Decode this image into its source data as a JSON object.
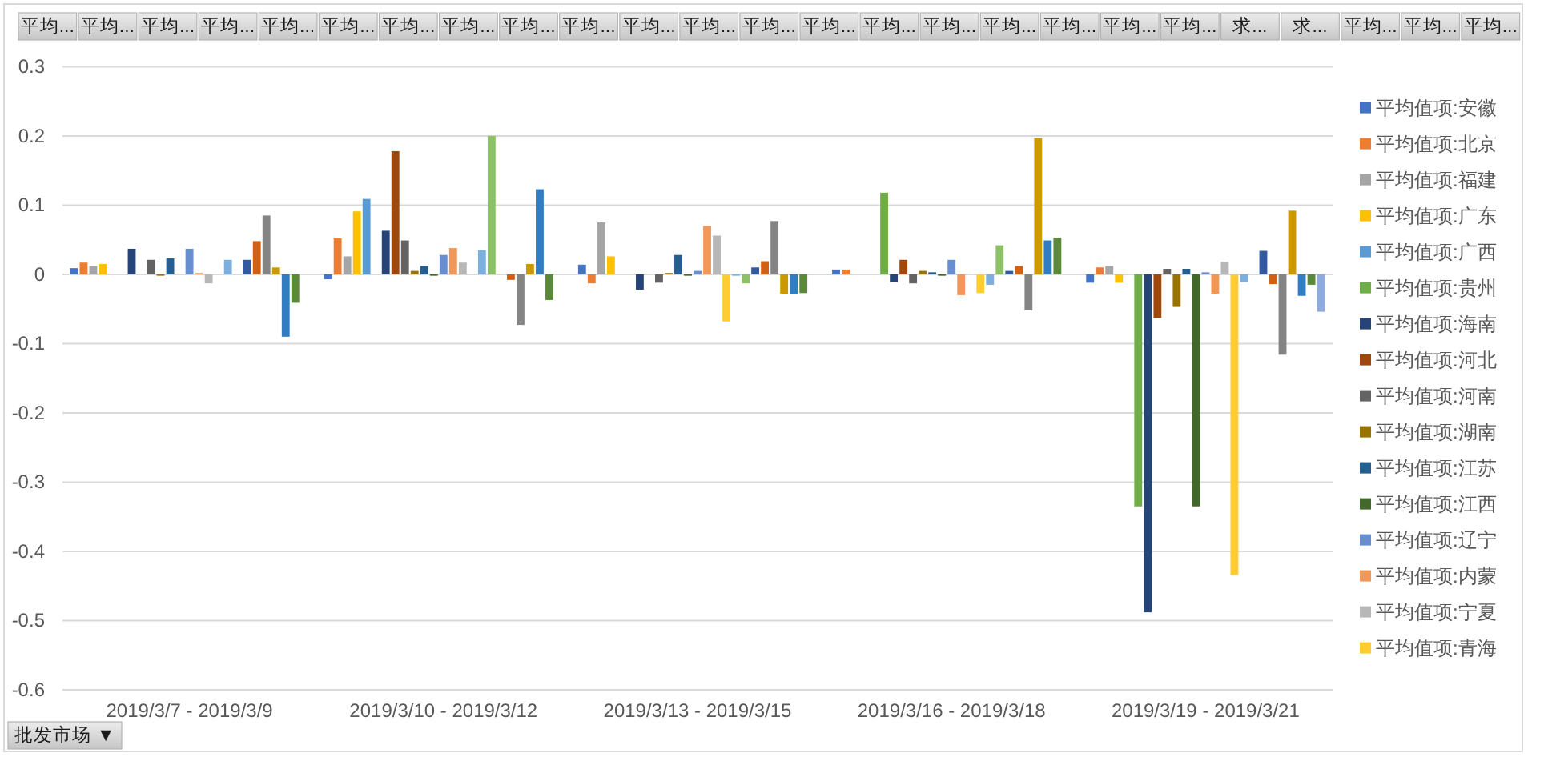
{
  "chart_data": {
    "type": "bar",
    "categories": [
      "2019/3/7 - 2019/3/9",
      "2019/3/10 - 2019/3/12",
      "2019/3/13 - 2019/3/15",
      "2019/3/16 - 2019/3/18",
      "2019/3/19 - 2019/3/21"
    ],
    "series": [
      {
        "name": "平均值项:安徽",
        "color": "#4472c4",
        "values": [
          0.009,
          -0.007,
          0.014,
          0.007,
          -0.012
        ]
      },
      {
        "name": "平均值项:北京",
        "color": "#ed7d31",
        "values": [
          0.017,
          0.052,
          -0.013,
          0.007,
          0.01
        ]
      },
      {
        "name": "平均值项:福建",
        "color": "#a5a5a5",
        "values": [
          0.012,
          0.026,
          0.075,
          null,
          0.012
        ]
      },
      {
        "name": "平均值项:广东",
        "color": "#ffc000",
        "values": [
          0.015,
          0.091,
          0.026,
          null,
          -0.012
        ]
      },
      {
        "name": "平均值项:广西",
        "color": "#5b9bd5",
        "values": [
          null,
          0.109,
          null,
          null,
          null
        ]
      },
      {
        "name": "平均值项:贵州",
        "color": "#70ad47",
        "values": [
          null,
          null,
          null,
          0.118,
          -0.335
        ]
      },
      {
        "name": "平均值项:海南",
        "color": "#264478",
        "values": [
          0.037,
          0.063,
          -0.022,
          -0.011,
          -0.488
        ]
      },
      {
        "name": "平均值项:河北",
        "color": "#9e480e",
        "values": [
          null,
          0.178,
          null,
          0.021,
          -0.063
        ]
      },
      {
        "name": "平均值项:河南",
        "color": "#636363",
        "values": [
          0.021,
          0.049,
          -0.012,
          -0.013,
          0.008
        ]
      },
      {
        "name": "平均值项:湖南",
        "color": "#997300",
        "values": [
          -0.002,
          0.005,
          0.002,
          0.005,
          -0.047
        ]
      },
      {
        "name": "平均值项:江苏",
        "color": "#255e91",
        "values": [
          0.023,
          0.012,
          0.028,
          0.003,
          0.008
        ]
      },
      {
        "name": "平均值项:江西",
        "color": "#43682b",
        "values": [
          null,
          -0.002,
          -0.002,
          -0.002,
          -0.335
        ]
      },
      {
        "name": "平均值项:辽宁",
        "color": "#698ed0",
        "values": [
          0.037,
          0.028,
          0.005,
          0.021,
          0.003
        ]
      },
      {
        "name": "平均值项:内蒙",
        "color": "#f1975a",
        "values": [
          0.002,
          0.038,
          0.07,
          -0.03,
          -0.028
        ]
      },
      {
        "name": "平均值项:宁夏",
        "color": "#b7b7b7",
        "values": [
          -0.013,
          0.017,
          0.056,
          null,
          0.018
        ]
      },
      {
        "name": "平均值项:青海",
        "color": "#ffcd33",
        "values": [
          null,
          null,
          -0.068,
          -0.027,
          -0.434
        ]
      },
      {
        "color": "#7cafdd",
        "values": [
          0.021,
          0.035,
          -0.002,
          -0.015,
          -0.011
        ]
      },
      {
        "color": "#8cc168",
        "values": [
          null,
          0.2,
          -0.013,
          0.042,
          null
        ]
      },
      {
        "color": "#335aa1",
        "values": [
          0.021,
          null,
          0.01,
          0.005,
          0.034
        ]
      },
      {
        "color": "#d26012",
        "values": [
          0.048,
          -0.008,
          0.019,
          0.012,
          -0.014
        ]
      },
      {
        "color": "#848484",
        "values": [
          0.085,
          -0.073,
          0.077,
          -0.052,
          -0.116
        ]
      },
      {
        "color": "#cc9a00",
        "values": [
          0.01,
          0.015,
          -0.028,
          0.197,
          0.092
        ]
      },
      {
        "color": "#327dc2",
        "values": [
          -0.09,
          0.123,
          -0.029,
          0.049,
          -0.031
        ]
      },
      {
        "color": "#5a8a39",
        "values": [
          -0.041,
          -0.037,
          -0.027,
          0.053,
          -0.015
        ]
      },
      {
        "color": "#8faadc",
        "values": [
          null,
          null,
          null,
          null,
          -0.054
        ]
      }
    ],
    "ylim": [
      -0.6,
      0.3
    ],
    "yticks": [
      -0.6,
      -0.5,
      -0.4,
      -0.3,
      -0.2,
      -0.1,
      0,
      0.1,
      0.2,
      0.3
    ],
    "grid": "y",
    "legend": "right",
    "annotations": [
      "平均...",
      "平均...",
      "平均...",
      "平均...",
      "平均...",
      "平均...",
      "平均...",
      "平均...",
      "平均...",
      "平均...",
      "平均...",
      "平均...",
      "平均...",
      "平均...",
      "平均...",
      "平均...",
      "平均...",
      "平均...",
      "平均...",
      "平均...",
      "求...",
      "求...",
      "平均...",
      "平均...",
      "平均...",
      "批发市场 ▼"
    ]
  }
}
